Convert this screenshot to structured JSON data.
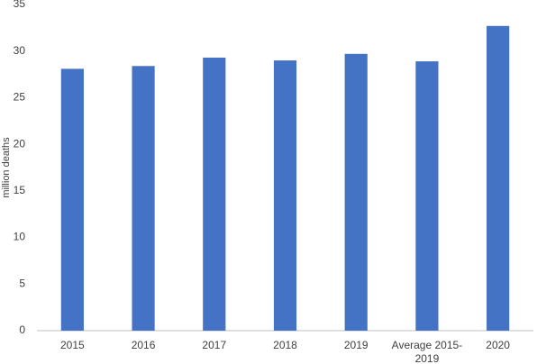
{
  "chart_data": {
    "type": "bar",
    "y_label": "million deaths",
    "categories": [
      "2015",
      "2016",
      "2017",
      "2018",
      "2019",
      "Average 2015-2019",
      "2020"
    ],
    "values": [
      28.1,
      28.4,
      29.3,
      29.0,
      29.7,
      28.9,
      32.7
    ],
    "color": "#4472c4",
    "ylim": [
      0,
      35
    ],
    "yticks": [
      0,
      5,
      10,
      15,
      20,
      25,
      30,
      35
    ],
    "grid": false
  }
}
